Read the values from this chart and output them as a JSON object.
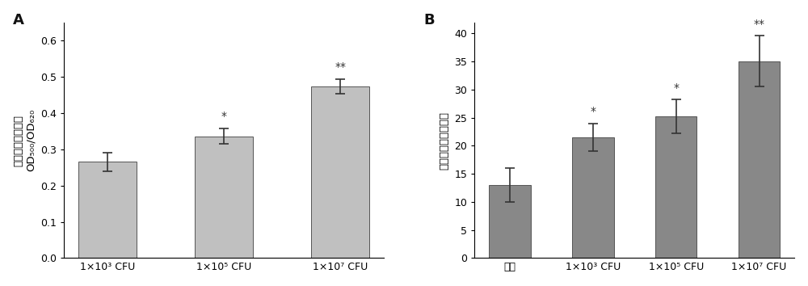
{
  "chart_A": {
    "label": "A",
    "categories": [
      "1×10³ CFU",
      "1×10⁵ CFU",
      "1×10⁷ CFU"
    ],
    "values": [
      0.265,
      0.336,
      0.474
    ],
    "errors": [
      0.025,
      0.022,
      0.02
    ],
    "bar_color": "#c0c0c0",
    "ylabel_line1": "生物被膜形成能力",
    "ylabel_line2": "OD₅₀₀/OD₆₂₀",
    "ylim": [
      0,
      0.65
    ],
    "yticks": [
      0.0,
      0.1,
      0.2,
      0.3,
      0.4,
      0.5,
      0.6
    ],
    "significance": [
      "",
      "*",
      "**"
    ]
  },
  "chart_B": {
    "label": "B",
    "categories": [
      "对照",
      "1×10³ CFU",
      "1×10⁵ CFU",
      "1×10⁷ CFU"
    ],
    "values": [
      13.0,
      21.5,
      25.2,
      35.1
    ],
    "errors": [
      3.0,
      2.5,
      3.0,
      4.5
    ],
    "bar_color": "#888888",
    "ylabel": "鲍鱼幼虫附着变态率",
    "ylim": [
      0,
      42
    ],
    "yticks": [
      0,
      5,
      10,
      15,
      20,
      25,
      30,
      35,
      40
    ],
    "significance": [
      "",
      "*",
      "*",
      "**"
    ]
  },
  "fig_width": 10.0,
  "fig_height": 3.54,
  "bar_width": 0.5,
  "bg_color": "#ffffff",
  "text_color": "#222222",
  "tick_fontsize": 9,
  "label_fontsize": 9.5,
  "sig_fontsize": 10
}
